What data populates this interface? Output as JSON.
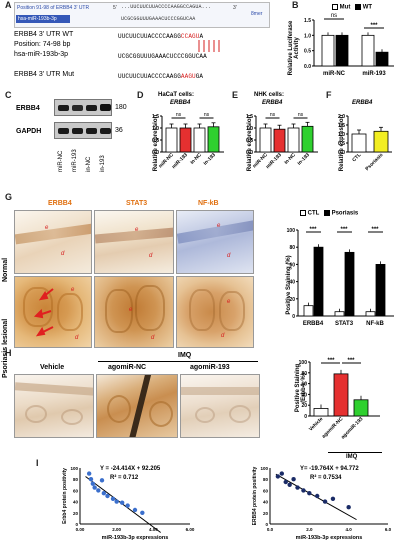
{
  "panel_labels": {
    "A": "A",
    "B": "B",
    "C": "C",
    "D": "D",
    "E": "E",
    "F": "F",
    "G": "G",
    "H": "H",
    "I": "I"
  },
  "panelA": {
    "header_left": "Position 91-98 of ERBB4 3' UTR",
    "header_5p": "5'",
    "header_seq": "...UUCUUCUUACCCCAAGGCCAGUA...",
    "header_3p": "3'",
    "header_mirna": "hsa-miR-193b-3p",
    "header_mirna_seq": "UCGCGGUUUGAAACUCCCGGUCAA",
    "header_tag": "8mer",
    "wt_label": "ERBB4 3' UTR WT",
    "position_label": "Position: 74-98 bp",
    "mirna_label": "hsa-miR-193b-3p",
    "mut_label": "ERBB4 3' UTR Mut",
    "wt_seq_a": "UUCUUCUUACCCCAAGG",
    "wt_seq_b": "CCAGU",
    "wt_seq_c": "A",
    "mir_seq": "UCGCGGUUUGAAACUCCCGGUCAA",
    "mut_seq_a": "UUCUUCUUACCCCAAGG",
    "mut_seq_b": "AAGU",
    "mut_seq_c": "GA"
  },
  "panelB": {
    "legend": [
      "Mut",
      "WT"
    ],
    "ylabel": "Relative Luciferase Activity",
    "ns": "ns",
    "sig": "***"
  },
  "panelC": {
    "rows": [
      "ERBB4",
      "GAPDH"
    ],
    "kda": [
      "180",
      "36"
    ],
    "lanes": [
      "miR-NC",
      "miR-193",
      "in-NC",
      "in-193"
    ]
  },
  "panelD": {
    "title": "HaCaT cells:",
    "gene": "ERBB4",
    "ylabel": "Relative expression",
    "ns": "ns"
  },
  "panelE": {
    "title": "NHK cells:",
    "gene": "ERBB4",
    "ylabel": "Relative expression",
    "ns": "ns"
  },
  "panelF": {
    "gene": "ERBB4",
    "ylabel": "Relative expression"
  },
  "panelG": {
    "columns": [
      "ERBB4",
      "STAT3",
      "NF-kB"
    ],
    "rows": [
      "Normal",
      "Psoriasis lesional"
    ],
    "marks": {
      "e": "e",
      "d": "d"
    },
    "legend": [
      "CTL",
      "Psoriasis"
    ],
    "ylabel": "Positive Staining (%)",
    "sig": "***"
  },
  "panelH": {
    "group_label": "IMQ",
    "columns": [
      "Vehicle",
      "agomiR-NC",
      "agomiR-193"
    ],
    "ylabel": "Positive Staining (Erbb4, %)",
    "bar_group_label": "IMQ",
    "sig": "***"
  },
  "panelI": {
    "left": {
      "equation": "Y = -24.414X + 92.205",
      "r2": "R² = 0.712"
    },
    "right": {
      "equation": "Y= -19.764X + 94.772",
      "r2": "R² = 0.7534"
    }
  },
  "chart_data": [
    {
      "id": "B",
      "type": "bar",
      "categories": [
        "miR-NC",
        "miR-193"
      ],
      "series": [
        {
          "name": "Mut",
          "values": [
            1.0,
            1.0
          ]
        },
        {
          "name": "WT",
          "values": [
            1.0,
            0.45
          ]
        }
      ],
      "ylabel": "Relative Luciferase Activity",
      "ylim": [
        0,
        1.5
      ],
      "yticks": [
        "0.0",
        "0.5",
        "1.0",
        "1.5"
      ],
      "colors": {
        "Mut": "#ffffff",
        "WT": "#000000"
      }
    },
    {
      "id": "D",
      "type": "bar",
      "categories": [
        "miR-NC",
        "miR-193",
        "in-NC",
        "in-193"
      ],
      "values": [
        1.0,
        1.0,
        1.0,
        1.05
      ],
      "colors": [
        "#ffffff",
        "#e53030",
        "#ffffff",
        "#2fd02f"
      ],
      "ylabel": "Relative expression",
      "ylim": [
        0,
        1.5
      ],
      "yticks": [
        "0.0",
        "0.5",
        "1.0",
        "1.5"
      ]
    },
    {
      "id": "E",
      "type": "bar",
      "categories": [
        "miR-NC",
        "miR-193",
        "in-NC",
        "in-193"
      ],
      "values": [
        1.0,
        0.95,
        1.0,
        1.07
      ],
      "colors": [
        "#ffffff",
        "#e53030",
        "#ffffff",
        "#2fd02f"
      ],
      "ylabel": "Relative expression",
      "ylim": [
        0,
        1.5
      ],
      "yticks": [
        "0.0",
        "0.5",
        "1.0",
        "1.5"
      ]
    },
    {
      "id": "F",
      "type": "bar",
      "categories": [
        "CTL",
        "Psoriasis"
      ],
      "values": [
        1.0,
        1.15
      ],
      "colors": [
        "#ffffff",
        "#f2ee22"
      ],
      "ylabel": "Relative expression",
      "ylim": [
        0,
        2.0
      ],
      "yticks": [
        "0.0",
        "0.5",
        "1.0",
        "1.5",
        "2.0"
      ]
    },
    {
      "id": "G",
      "type": "bar",
      "categories": [
        "ERBB4",
        "STAT3",
        "NF-kB"
      ],
      "series": [
        {
          "name": "CTL",
          "values": [
            12,
            5,
            5
          ]
        },
        {
          "name": "Psoriasis",
          "values": [
            80,
            74,
            60
          ]
        }
      ],
      "ylabel": "Positive Staining (%)",
      "ylim": [
        0,
        100
      ],
      "yticks": [
        "0",
        "20",
        "40",
        "60",
        "80",
        "100"
      ]
    },
    {
      "id": "H",
      "type": "bar",
      "categories": [
        "Vehicle",
        "agomiR-NC",
        "agomiR-193"
      ],
      "values": [
        14,
        78,
        30
      ],
      "colors": [
        "#ffffff",
        "#e53030",
        "#2fd02f"
      ],
      "ylabel": "Positive Staining (Erbb4, %)",
      "ylim": [
        0,
        100
      ],
      "yticks": [
        "0",
        "20",
        "40",
        "60",
        "80",
        "100"
      ]
    },
    {
      "id": "I-left",
      "type": "scatter",
      "xlabel": "miR-193b-3p expressions",
      "ylabel": "Erbb4 protein positivity",
      "xlim": [
        0,
        6
      ],
      "ylim": [
        0,
        100
      ],
      "xticks": [
        "0.00",
        "2.00",
        "4.00",
        "6.00"
      ],
      "yticks": [
        "0",
        "20",
        "40",
        "60",
        "80",
        "100"
      ],
      "x": [
        0.5,
        0.6,
        0.7,
        0.8,
        1.0,
        1.2,
        1.3,
        1.5,
        1.8,
        2.0,
        2.3,
        2.6,
        3.0,
        3.4
      ],
      "y": [
        90,
        80,
        72,
        65,
        60,
        78,
        55,
        50,
        45,
        40,
        38,
        33,
        25,
        20
      ],
      "point_color": "#3b6fcc"
    },
    {
      "id": "I-right",
      "type": "scatter",
      "xlabel": "miR-193b-3p expressions",
      "ylabel": "ERBB4 protein positivity",
      "xlim": [
        0,
        6
      ],
      "ylim": [
        0,
        100
      ],
      "xticks": [
        "0.0",
        "2.0",
        "4.0",
        "6.0"
      ],
      "yticks": [
        "0",
        "20",
        "40",
        "60",
        "80",
        "100"
      ],
      "x": [
        0.4,
        0.6,
        0.8,
        1.0,
        1.2,
        1.4,
        1.7,
        2.0,
        2.4,
        2.8,
        3.2,
        4.0
      ],
      "y": [
        85,
        90,
        75,
        70,
        80,
        65,
        60,
        55,
        50,
        40,
        45,
        30
      ],
      "point_color": "#1a2b66"
    }
  ]
}
